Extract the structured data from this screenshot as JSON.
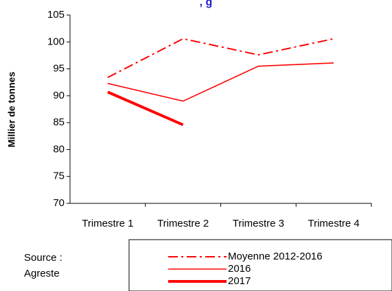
{
  "chart_data": {
    "type": "line",
    "title": ", g",
    "y_label": "Millier de tonnes",
    "categories": [
      "Trimestre 1",
      "Trimestre 2",
      "Trimestre 3",
      "Trimestre 4"
    ],
    "series": [
      {
        "name": "Moyenne 2012-2016",
        "color": "#ff0000",
        "style": "dashdot",
        "values": [
          93.4,
          100.6,
          97.6,
          100.6
        ]
      },
      {
        "name": "2016",
        "color": "#ff0000",
        "style": "thin",
        "values": [
          92.3,
          89.0,
          95.5,
          96.1
        ]
      },
      {
        "name": "2017",
        "color": "#ff0000",
        "style": "thick",
        "values": [
          90.7,
          84.6,
          null,
          null
        ]
      }
    ],
    "ylim": [
      70,
      105
    ],
    "yticks": [
      70,
      75,
      80,
      85,
      90,
      95,
      100,
      105
    ],
    "source": [
      "Source :",
      "Agreste"
    ]
  }
}
